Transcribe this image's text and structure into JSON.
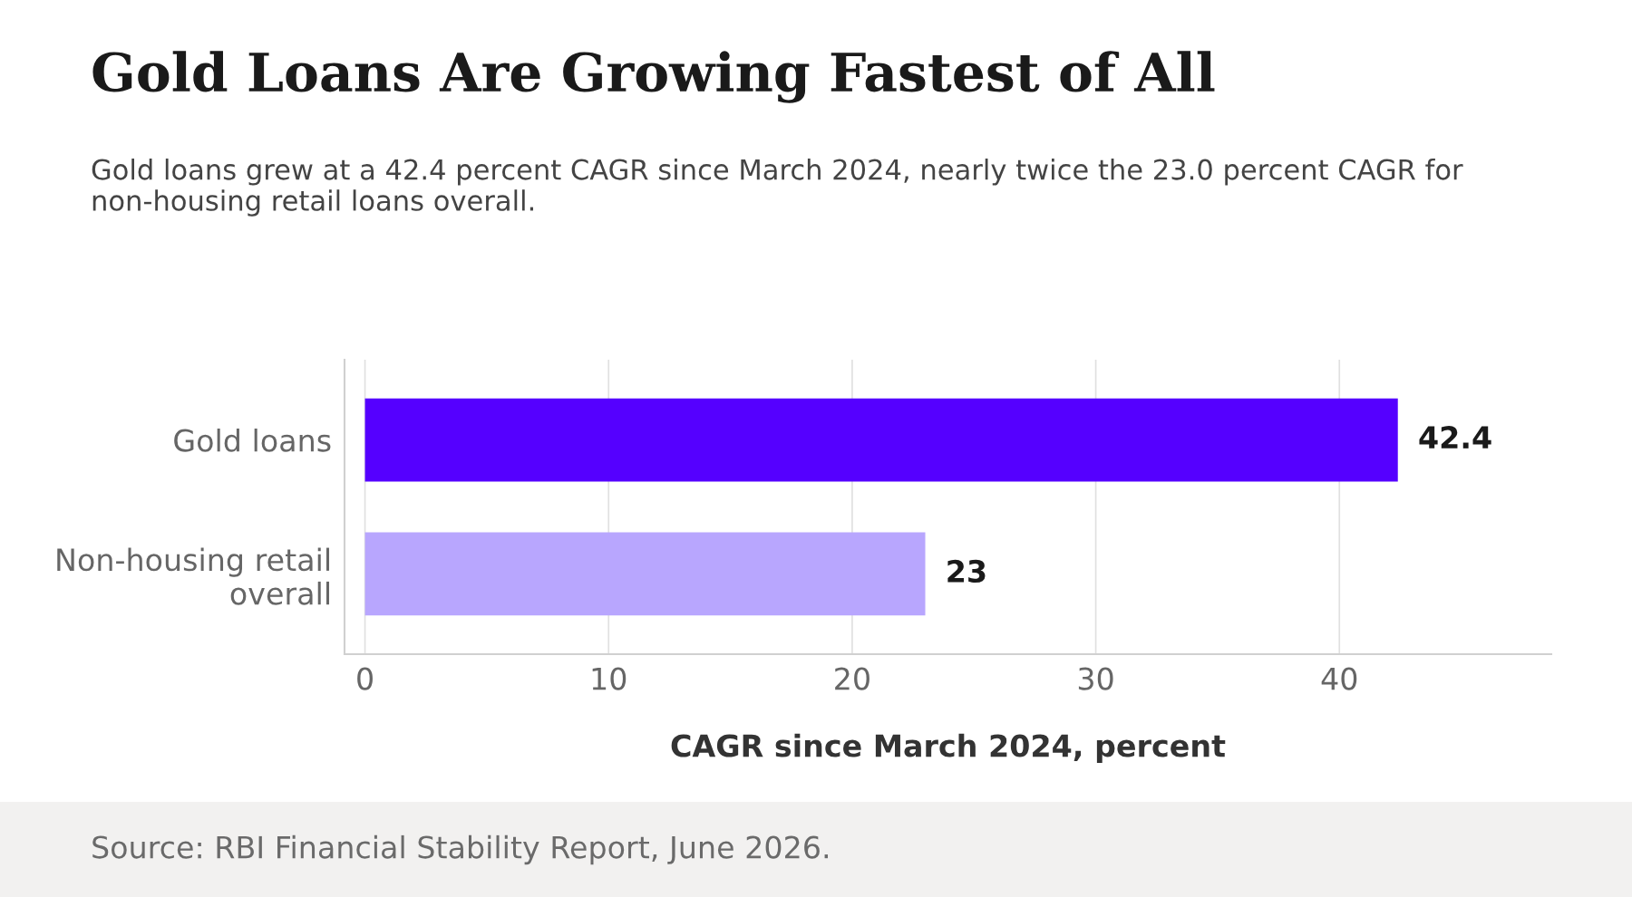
{
  "chart_data": {
    "type": "bar",
    "orientation": "horizontal",
    "title": "Gold Loans Are Growing Fastest of All",
    "subtitle": "Gold loans grew at a 42.4 percent CAGR since March 2024, nearly twice the 23.0 percent CAGR for non-housing retail loans overall.",
    "xlabel": "CAGR since March 2024, percent",
    "categories": [
      "Gold loans",
      "Non-housing retail\noverall"
    ],
    "values": [
      42.4,
      23
    ],
    "colors": [
      "#5500ff",
      "#b8a6fe"
    ],
    "value_labels": [
      "42.4",
      "23"
    ],
    "xlim": [
      -0.84,
      48.7
    ],
    "xticks": [
      0,
      10,
      20,
      30,
      40
    ],
    "grid": "x",
    "annotations": [
      "Source: RBI Financial Stability Report, June 2026."
    ]
  }
}
